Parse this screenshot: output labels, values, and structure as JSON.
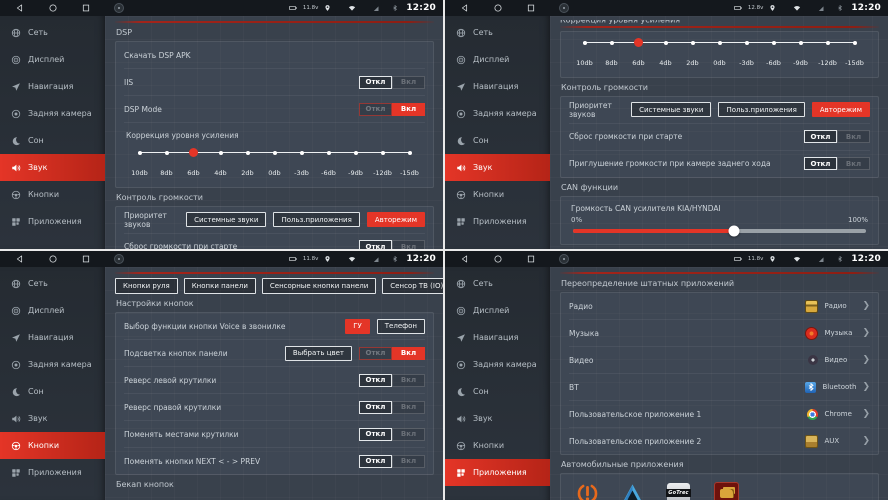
{
  "toggle": {
    "off": "Откл",
    "on": "Вкл"
  },
  "status_bar": {
    "time": "12:20"
  },
  "sidebar": {
    "items": [
      {
        "label": "Сеть",
        "icon": "network"
      },
      {
        "label": "Дисплей",
        "icon": "display"
      },
      {
        "label": "Навигация",
        "icon": "navigation"
      },
      {
        "label": "Задняя камера",
        "icon": "rear-camera"
      },
      {
        "label": "Сон",
        "icon": "sleep"
      },
      {
        "label": "Звук",
        "icon": "sound"
      },
      {
        "label": "Кнопки",
        "icon": "buttons"
      },
      {
        "label": "Приложения",
        "icon": "apps"
      }
    ]
  },
  "colors": {
    "accent": "#e43527",
    "statusbar": "#14181d",
    "background": "#39414c"
  },
  "quadrants": [
    {
      "name": "sound-dsp",
      "voltage": "11.8v",
      "selected_index": 5,
      "content": [
        {
          "t": "redline"
        },
        {
          "t": "section",
          "label": "DSP"
        },
        {
          "t": "panel",
          "rows": [
            {
              "t": "row",
              "label": "Скачать DSP APK",
              "controls": [
                {
                  "t": "icon",
                  "icon": "download-cloud",
                  "name": "download-dsp-apk-button"
                }
              ]
            },
            {
              "t": "row",
              "label": "IIS",
              "controls": [
                {
                  "t": "toggle",
                  "state": "off"
                }
              ]
            },
            {
              "t": "row",
              "label": "DSP Mode",
              "controls": [
                {
                  "t": "toggle",
                  "state": "on"
                }
              ]
            },
            {
              "t": "db-slider",
              "label": "Коррекция уровня усиления",
              "ticks": [
                "10db",
                "8db",
                "6db",
                "4db",
                "2db",
                "0db",
                "-3db",
                "-6db",
                "-9db",
                "-12db",
                "-15db"
              ],
              "selected": 2
            }
          ]
        },
        {
          "t": "section",
          "label": "Контроль громкости"
        },
        {
          "t": "panel",
          "rows": [
            {
              "t": "row",
              "label": "Приоритет звуков",
              "controls": [
                {
                  "t": "btn",
                  "label": "Системные звуки"
                },
                {
                  "t": "btn",
                  "label": "Польз.приложения"
                },
                {
                  "t": "btn",
                  "label": "Авторежим",
                  "active": true
                }
              ]
            },
            {
              "t": "row",
              "label": "Сброс громкости при старте",
              "controls": [
                {
                  "t": "toggle",
                  "state": "off"
                }
              ]
            }
          ]
        }
      ]
    },
    {
      "name": "sound-volume-can",
      "voltage": "12.8v",
      "selected_index": 5,
      "content": [
        {
          "t": "clip",
          "label": "Коррекция уровня усиления"
        },
        {
          "t": "redline"
        },
        {
          "t": "panel",
          "rows": [
            {
              "t": "db-slider",
              "label": "",
              "ticks": [
                "10db",
                "8db",
                "6db",
                "4db",
                "2db",
                "0db",
                "-3db",
                "-6db",
                "-9db",
                "-12db",
                "-15db"
              ],
              "selected": 2
            }
          ]
        },
        {
          "t": "section",
          "label": "Контроль громкости"
        },
        {
          "t": "panel",
          "rows": [
            {
              "t": "row",
              "label": "Приоритет звуков",
              "controls": [
                {
                  "t": "btn",
                  "label": "Системные звуки"
                },
                {
                  "t": "btn",
                  "label": "Польз.приложения"
                },
                {
                  "t": "btn",
                  "label": "Авторежим",
                  "active": true
                }
              ]
            },
            {
              "t": "row",
              "label": "Сброс громкости при старте",
              "controls": [
                {
                  "t": "toggle",
                  "state": "off"
                }
              ]
            },
            {
              "t": "row",
              "label": "Приглушение громкости при камере заднего хода",
              "controls": [
                {
                  "t": "toggle",
                  "state": "off"
                }
              ]
            }
          ]
        },
        {
          "t": "section",
          "label": "CAN функции"
        },
        {
          "t": "panel",
          "rows": [
            {
              "t": "can",
              "label": "Громкость CAN усилителя KIA/HYNDAI",
              "min": "0%",
              "max": "100%",
              "value_pct": 55
            }
          ]
        }
      ]
    },
    {
      "name": "buttons-settings",
      "voltage": "11.8v",
      "selected_index": 6,
      "content": [
        {
          "t": "redline"
        },
        {
          "t": "tabs",
          "tabs": [
            "Кнопки руля",
            "Кнопки панели",
            "Сенсорные кнопки панели",
            "Сенсор ТВ (IO)"
          ]
        },
        {
          "t": "section",
          "label": "Настройки кнопок"
        },
        {
          "t": "panel",
          "rows": [
            {
              "t": "row",
              "label": "Выбор функции кнопки Voice в звонилке",
              "controls": [
                {
                  "t": "btn",
                  "label": "ГУ",
                  "active": true
                },
                {
                  "t": "btn",
                  "label": "Телефон"
                }
              ]
            },
            {
              "t": "row",
              "label": "Подсветка кнопок панели",
              "controls": [
                {
                  "t": "btn",
                  "label": "Выбрать цвет",
                  "name": "color-picker-button"
                },
                {
                  "t": "toggle",
                  "state": "on"
                }
              ]
            },
            {
              "t": "row",
              "label": "Реверс левой крутилки",
              "controls": [
                {
                  "t": "toggle",
                  "state": "off"
                }
              ]
            },
            {
              "t": "row",
              "label": "Реверс правой крутилки",
              "controls": [
                {
                  "t": "toggle",
                  "state": "off"
                }
              ]
            },
            {
              "t": "row",
              "label": "Поменять местами крутилки",
              "controls": [
                {
                  "t": "toggle",
                  "state": "off"
                }
              ]
            },
            {
              "t": "row",
              "label": "Поменять кнопки NEXT < - > PREV",
              "controls": [
                {
                  "t": "toggle",
                  "state": "off"
                }
              ]
            }
          ]
        },
        {
          "t": "section",
          "label": "Бекап кнопок"
        }
      ]
    },
    {
      "name": "apps-override",
      "voltage": "11.8v",
      "selected_index": 7,
      "content": [
        {
          "t": "redline"
        },
        {
          "t": "section",
          "label": "Переопределение штатных приложений"
        },
        {
          "t": "panel",
          "rows": [
            {
              "t": "app",
              "label": "Радио",
              "app": "Радио",
              "icon": "radio"
            },
            {
              "t": "app",
              "label": "Музыка",
              "app": "Музыка",
              "icon": "music"
            },
            {
              "t": "app",
              "label": "Видео",
              "app": "Видео",
              "icon": "video"
            },
            {
              "t": "app",
              "label": "BT",
              "app": "Bluetooth",
              "icon": "bt"
            },
            {
              "t": "app",
              "label": "Пользовательское приложение 1",
              "app": "Chrome",
              "icon": "chrome"
            },
            {
              "t": "app",
              "label": "Пользовательское приложение 2",
              "app": "AUX",
              "icon": "aux"
            }
          ]
        },
        {
          "t": "section",
          "label": "Автомобильные приложения"
        },
        {
          "t": "car-icons",
          "icons": [
            {
              "name": "tpms"
            },
            {
              "name": "android-auto"
            },
            {
              "name": "gotrec",
              "label": "GoTrec"
            },
            {
              "name": "obd"
            }
          ]
        }
      ]
    }
  ]
}
